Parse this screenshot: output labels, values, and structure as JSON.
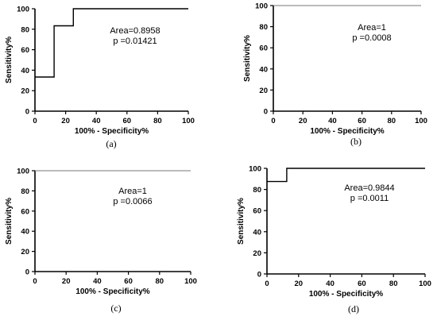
{
  "chart_data": [
    {
      "type": "line",
      "panel_label": "(a)",
      "xlabel": "100% - Specificity%",
      "ylabel": "Sensitivity%",
      "xlim": [
        0,
        100
      ],
      "ylim": [
        0,
        100
      ],
      "xticks": [
        "0",
        "20",
        "40",
        "60",
        "80",
        "100"
      ],
      "yticks": [
        "0",
        "20",
        "40",
        "60",
        "80",
        "100"
      ],
      "annotation_lines": [
        "Area=0.8958",
        "p =0.01421"
      ],
      "series": [
        {
          "x": [
            0,
            12.5,
            12.5,
            25,
            25,
            100
          ],
          "y": [
            33.3,
            33.3,
            83.3,
            83.3,
            100,
            100
          ],
          "style": "step"
        }
      ]
    },
    {
      "type": "line",
      "panel_label": "(b)",
      "xlabel": "100% - Specificity%",
      "ylabel": "Sensitivity%",
      "xlim": [
        0,
        100
      ],
      "ylim": [
        0,
        100
      ],
      "xticks": [
        "0",
        "20",
        "40",
        "60",
        "80",
        "100"
      ],
      "yticks": [
        "0",
        "20",
        "40",
        "60",
        "80",
        "100"
      ],
      "annotation_lines": [
        "Area=1",
        "p =0.0008"
      ],
      "series": [
        {
          "x": [
            0,
            100
          ],
          "y": [
            100,
            100
          ],
          "style": "flat"
        }
      ]
    },
    {
      "type": "line",
      "panel_label": "(c)",
      "xlabel": "100% - Specificity%",
      "ylabel": "Sensitivity%",
      "xlim": [
        0,
        100
      ],
      "ylim": [
        0,
        100
      ],
      "xticks": [
        "0",
        "20",
        "40",
        "60",
        "80",
        "100"
      ],
      "yticks": [
        "0",
        "20",
        "40",
        "60",
        "80",
        "100"
      ],
      "annotation_lines": [
        "Area=1",
        "p =0.0066"
      ],
      "series": [
        {
          "x": [
            0,
            100
          ],
          "y": [
            100,
            100
          ],
          "style": "flat"
        }
      ]
    },
    {
      "type": "line",
      "panel_label": "(d)",
      "xlabel": "100% - Specificity%",
      "ylabel": "Sensitivity%",
      "xlim": [
        0,
        100
      ],
      "ylim": [
        0,
        100
      ],
      "xticks": [
        "0",
        "20",
        "40",
        "60",
        "80",
        "100"
      ],
      "yticks": [
        "0",
        "20",
        "40",
        "60",
        "80",
        "100"
      ],
      "annotation_lines": [
        "Area=0.9844",
        "p =0.0011"
      ],
      "series": [
        {
          "x": [
            0,
            12.5,
            12.5,
            100
          ],
          "y": [
            87.5,
            87.5,
            100,
            100
          ],
          "style": "step"
        }
      ]
    }
  ]
}
